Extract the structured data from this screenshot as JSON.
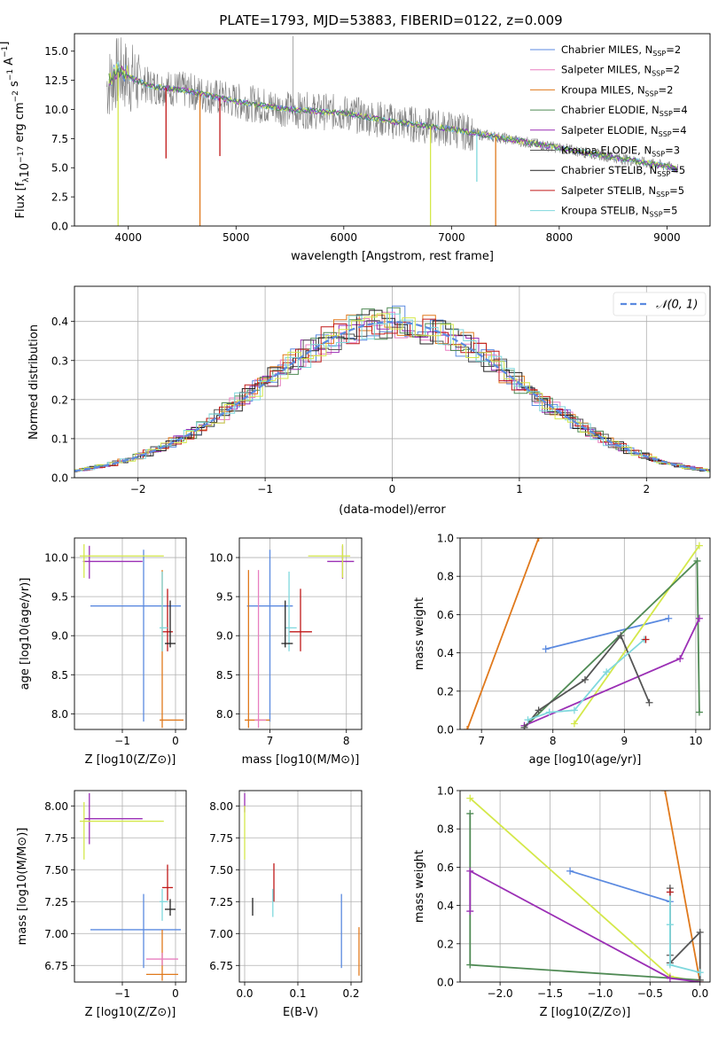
{
  "figure": {
    "title": "PLATE=1793, MJD=53883, FIBERID=0122, z=0.009"
  },
  "colors": {
    "chabrier_miles": "#5b8ae0",
    "salpeter_miles": "#e87fc0",
    "kroupa_miles": "#e0791c",
    "chabrier_elodie": "#4f8a54",
    "salpeter_elodie": "#9b2fb5",
    "kroupa_elodie": "#555555",
    "chabrier_stelib": "#222222",
    "salpeter_stelib": "#c01818",
    "kroupa_stelib": "#7fd8dd",
    "data_spectrum": "#808080",
    "yellow_green": "#d4e84a",
    "normal_curve": "#5b8ae0",
    "grid": "#b0b0b0"
  },
  "chart_data": [
    {
      "id": "spectrum",
      "type": "line",
      "xlabel": "wavelength [Angstrom, rest frame]",
      "ylabel": "Flux [f_λ 10^-17 erg cm^-2 s^-1 A^-1]",
      "xlim": [
        3500,
        9400
      ],
      "ylim": [
        0,
        16.5
      ],
      "xticks": [
        4000,
        5000,
        6000,
        7000,
        8000,
        9000
      ],
      "yticks": [
        0.0,
        2.5,
        5.0,
        7.5,
        10.0,
        12.5,
        15.0
      ],
      "ytick_labels": [
        "0.0",
        "2.5",
        "5.0",
        "7.5",
        "10.0",
        "12.5",
        "15.0"
      ],
      "grid": false,
      "legend_position": "top-right",
      "legend": [
        "Chabrier MILES, N_SSP=2",
        "Salpeter MILES, N_SSP=2",
        "Kroupa MILES, N_SSP=2",
        "Chabrier ELODIE, N_SSP=4",
        "Salpeter ELODIE, N_SSP=4",
        "Kroupa ELODIE, N_SSP=3",
        "Chabrier STELIB, N_SSP=5",
        "Salpeter STELIB, N_SSP=5",
        "Kroupa STELIB, N_SSP=5"
      ],
      "continuum_wavelength": [
        3800,
        3900,
        4000,
        4200,
        4500,
        5000,
        5500,
        6000,
        6500,
        7000,
        7500,
        8000,
        8500,
        9000,
        9100
      ],
      "continuum_flux": [
        12.0,
        13.2,
        12.8,
        12.0,
        11.7,
        10.7,
        10.0,
        9.7,
        8.9,
        8.3,
        7.5,
        6.7,
        5.9,
        5.1,
        4.9
      ]
    },
    {
      "id": "residual_hist",
      "type": "line",
      "xlabel": "(data-model)/error",
      "ylabel": "Normed distribution",
      "xlim": [
        -2.5,
        2.5
      ],
      "ylim": [
        0,
        0.49
      ],
      "xticks": [
        -2,
        -1,
        0,
        1,
        2
      ],
      "xtick_labels": [
        "−2",
        "−1",
        "0",
        "1",
        "2"
      ],
      "yticks": [
        0.0,
        0.1,
        0.2,
        0.3,
        0.4
      ],
      "ytick_labels": [
        "0.0",
        "0.1",
        "0.2",
        "0.3",
        "0.4"
      ],
      "grid": true,
      "legend_position": "top-right",
      "legend": [
        "𝒩(0, 1)"
      ],
      "normal": {
        "mean": 0,
        "sigma": 1
      }
    },
    {
      "id": "age_vs_Z",
      "type": "scatter",
      "xlabel": "Z [log10(Z/Z⊙)]",
      "ylabel": "age  [log10(age/yr)]",
      "xlim": [
        -1.9,
        0.2
      ],
      "ylim": [
        7.8,
        10.25
      ],
      "xticks": [
        -1,
        0
      ],
      "xtick_labels": [
        "−1",
        "0"
      ],
      "yticks": [
        8.0,
        8.5,
        9.0,
        9.5,
        10.0
      ],
      "ytick_labels": [
        "8.0",
        "8.5",
        "9.0",
        "9.5",
        "10.0"
      ],
      "grid": true,
      "errorbars": [
        {
          "series": "chabrier_miles",
          "x": -0.6,
          "xerr": [
            1.0,
            0.7
          ],
          "y": 9.38,
          "yerr": [
            1.48,
            0.72
          ]
        },
        {
          "series": "kroupa_miles",
          "x": -0.25,
          "xerr": [
            0.05,
            0.4
          ],
          "y": 7.92,
          "yerr": [
            0.1,
            1.92
          ]
        },
        {
          "series": "salpeter_elodie",
          "x": -1.62,
          "xerr": [
            0.12,
            1.0
          ],
          "y": 9.95,
          "yerr": [
            0.22,
            0.2
          ]
        },
        {
          "series": "yellow_green",
          "x": -1.72,
          "xerr": [
            0.08,
            1.5
          ],
          "y": 10.02,
          "yerr": [
            0.28,
            0.15
          ]
        },
        {
          "series": "salpeter_stelib",
          "x": -0.15,
          "xerr": [
            0.1,
            0.1
          ],
          "y": 9.05,
          "yerr": [
            0.25,
            0.55
          ]
        },
        {
          "series": "kroupa_stelib",
          "x": -0.25,
          "xerr": [
            0.05,
            0.1
          ],
          "y": 9.1,
          "yerr": [
            0.3,
            0.72
          ]
        },
        {
          "series": "chabrier_stelib",
          "x": -0.1,
          "xerr": [
            0.1,
            0.1
          ],
          "y": 8.9,
          "yerr": [
            0.05,
            0.55
          ]
        }
      ]
    },
    {
      "id": "age_vs_mass",
      "type": "scatter",
      "xlabel": "mass [log10(M/M⊙)]",
      "ylabel": "",
      "xlim": [
        6.6,
        8.2
      ],
      "ylim": [
        7.8,
        10.25
      ],
      "xticks": [
        7,
        8
      ],
      "xtick_labels": [
        "7",
        "8"
      ],
      "yticks": [
        8.0,
        8.5,
        9.0,
        9.5,
        10.0
      ],
      "ytick_labels": [
        "8.0",
        "8.5",
        "9.0",
        "9.5",
        "10.0"
      ],
      "grid": true,
      "errorbars": [
        {
          "series": "chabrier_miles",
          "x": 7.0,
          "xerr": [
            0.3,
            0.3
          ],
          "y": 9.38,
          "yerr": [
            1.48,
            0.72
          ]
        },
        {
          "series": "kroupa_miles",
          "x": 6.72,
          "xerr": [
            0.05,
            0.28
          ],
          "y": 7.92,
          "yerr": [
            0.1,
            1.92
          ]
        },
        {
          "series": "salpeter_miles",
          "x": 6.85,
          "xerr": [
            0.05,
            0.1
          ],
          "y": 7.92,
          "yerr": [
            0.1,
            1.92
          ]
        },
        {
          "series": "salpeter_elodie",
          "x": 7.95,
          "xerr": [
            0.2,
            0.15
          ],
          "y": 9.95,
          "yerr": [
            0.22,
            0.2
          ]
        },
        {
          "series": "yellow_green",
          "x": 7.95,
          "xerr": [
            0.45,
            0.1
          ],
          "y": 10.02,
          "yerr": [
            0.28,
            0.15
          ]
        },
        {
          "series": "salpeter_stelib",
          "x": 7.4,
          "xerr": [
            0.15,
            0.15
          ],
          "y": 9.05,
          "yerr": [
            0.25,
            0.55
          ]
        },
        {
          "series": "kroupa_stelib",
          "x": 7.25,
          "xerr": [
            0.05,
            0.1
          ],
          "y": 9.1,
          "yerr": [
            0.3,
            0.72
          ]
        },
        {
          "series": "chabrier_stelib",
          "x": 7.2,
          "xerr": [
            0.05,
            0.1
          ],
          "y": 8.9,
          "yerr": [
            0.05,
            0.55
          ]
        }
      ]
    },
    {
      "id": "weight_vs_age",
      "type": "line",
      "xlabel": "age  [log10(age/yr)]",
      "ylabel": "mass weight",
      "xlim": [
        6.7,
        10.2
      ],
      "ylim": [
        0,
        1.0
      ],
      "xticks": [
        7,
        8,
        9,
        10
      ],
      "xtick_labels": [
        "7",
        "8",
        "9",
        "10"
      ],
      "yticks": [
        0.0,
        0.2,
        0.4,
        0.6,
        0.8,
        1.0
      ],
      "ytick_labels": [
        "0.0",
        "0.2",
        "0.4",
        "0.6",
        "0.8",
        "1.0"
      ],
      "grid": true,
      "series": [
        {
          "color": "kroupa_miles",
          "x": [
            6.8,
            7.8
          ],
          "y": [
            0.0,
            1.0
          ]
        },
        {
          "color": "chabrier_miles",
          "x": [
            7.9,
            9.62
          ],
          "y": [
            0.42,
            0.58
          ]
        },
        {
          "color": "yellow_green",
          "x": [
            8.3,
            10.05
          ],
          "y": [
            0.03,
            0.96
          ]
        },
        {
          "color": "chabrier_elodie",
          "x": [
            7.6,
            10.02,
            10.05
          ],
          "y": [
            0.01,
            0.88,
            0.09
          ]
        },
        {
          "color": "salpeter_elodie",
          "x": [
            7.6,
            9.78,
            10.05
          ],
          "y": [
            0.02,
            0.37,
            0.58
          ]
        },
        {
          "color": "kroupa_elodie",
          "x": [
            7.6,
            7.8,
            8.45,
            8.95,
            9.35
          ],
          "y": [
            0.01,
            0.1,
            0.26,
            0.49,
            0.14
          ]
        },
        {
          "color": "kroupa_stelib",
          "x": [
            7.65,
            7.95,
            8.3,
            8.75,
            9.28
          ],
          "y": [
            0.05,
            0.09,
            0.1,
            0.3,
            0.47
          ]
        },
        {
          "color": "salpeter_stelib",
          "x": [
            9.3
          ],
          "y": [
            0.47
          ]
        }
      ]
    },
    {
      "id": "mass_vs_Z",
      "type": "scatter",
      "xlabel": "Z [log10(Z/Z⊙)]",
      "ylabel": "mass [log10(M/M⊙)]",
      "xlim": [
        -1.9,
        0.2
      ],
      "ylim": [
        6.62,
        8.12
      ],
      "xticks": [
        -1,
        0
      ],
      "xtick_labels": [
        "−1",
        "0"
      ],
      "yticks": [
        6.75,
        7.0,
        7.25,
        7.5,
        7.75,
        8.0
      ],
      "ytick_labels": [
        "6.75",
        "7.00",
        "7.25",
        "7.50",
        "7.75",
        "8.00"
      ],
      "grid": true,
      "errorbars": [
        {
          "series": "chabrier_miles",
          "x": -0.6,
          "xerr": [
            1.0,
            0.7
          ],
          "y": 7.03,
          "yerr": [
            0.3,
            0.28
          ]
        },
        {
          "series": "kroupa_miles",
          "x": -0.25,
          "xerr": [
            0.3,
            0.3
          ],
          "y": 6.68,
          "yerr": [
            0.05,
            0.35
          ]
        },
        {
          "series": "salpeter_miles",
          "x": -0.25,
          "xerr": [
            0.3,
            0.3
          ],
          "y": 6.8,
          "yerr": [
            0.05,
            0.05
          ]
        },
        {
          "series": "salpeter_elodie",
          "x": -1.62,
          "xerr": [
            0.1,
            1.0
          ],
          "y": 7.9,
          "yerr": [
            0.2,
            0.2
          ]
        },
        {
          "series": "yellow_green",
          "x": -1.72,
          "xerr": [
            0.08,
            1.5
          ],
          "y": 7.88,
          "yerr": [
            0.3,
            0.15
          ]
        },
        {
          "series": "salpeter_stelib",
          "x": -0.15,
          "xerr": [
            0.1,
            0.1
          ],
          "y": 7.36,
          "yerr": [
            0.1,
            0.18
          ]
        },
        {
          "series": "kroupa_stelib",
          "x": -0.25,
          "xerr": [
            0.05,
            0.1
          ],
          "y": 7.25,
          "yerr": [
            0.15,
            0.1
          ]
        },
        {
          "series": "chabrier_stelib",
          "x": -0.1,
          "xerr": [
            0.1,
            0.1
          ],
          "y": 7.19,
          "yerr": [
            0.05,
            0.08
          ]
        }
      ]
    },
    {
      "id": "mass_vs_ebv",
      "type": "scatter",
      "xlabel": "E(B-V)",
      "ylabel": "",
      "xlim": [
        -0.01,
        0.22
      ],
      "ylim": [
        6.62,
        8.12
      ],
      "xticks": [
        0.0,
        0.1,
        0.2
      ],
      "xtick_labels": [
        "0.0",
        "0.1",
        "0.2"
      ],
      "yticks": [
        6.75,
        7.0,
        7.25,
        7.5,
        7.75,
        8.0
      ],
      "ytick_labels": [
        "6.75",
        "7.00",
        "7.25",
        "7.50",
        "7.75",
        "8.00"
      ],
      "grid": true,
      "errorbars": [
        {
          "series": "chabrier_miles",
          "x": 0.182,
          "xerr": [
            0,
            0
          ],
          "y": 7.03,
          "yerr": [
            0.3,
            0.28
          ]
        },
        {
          "series": "kroupa_miles",
          "x": 0.215,
          "xerr": [
            0,
            0
          ],
          "y": 6.85,
          "yerr": [
            0.18,
            0.2
          ]
        },
        {
          "series": "salpeter_elodie",
          "x": 0.0,
          "xerr": [
            0,
            0
          ],
          "y": 8.0,
          "yerr": [
            0.05,
            0.1
          ]
        },
        {
          "series": "yellow_green",
          "x": 0.0,
          "xerr": [
            0,
            0
          ],
          "y": 7.75,
          "yerr": [
            0.17,
            0.25
          ]
        },
        {
          "series": "salpeter_stelib",
          "x": 0.055,
          "xerr": [
            0,
            0
          ],
          "y": 7.4,
          "yerr": [
            0.15,
            0.15
          ]
        },
        {
          "series": "kroupa_stelib",
          "x": 0.053,
          "xerr": [
            0,
            0
          ],
          "y": 7.25,
          "yerr": [
            0.12,
            0.1
          ]
        },
        {
          "series": "chabrier_stelib",
          "x": 0.015,
          "xerr": [
            0,
            0
          ],
          "y": 7.21,
          "yerr": [
            0.07,
            0.07
          ]
        }
      ]
    },
    {
      "id": "weight_vs_Z",
      "type": "line",
      "xlabel": "Z [log10(Z/Z⊙)]",
      "ylabel": "mass weight",
      "xlim": [
        -2.4,
        0.1
      ],
      "ylim": [
        0,
        1.0
      ],
      "xticks": [
        -2.0,
        -1.5,
        -1.0,
        -0.5,
        0.0
      ],
      "xtick_labels": [
        "−2.0",
        "−1.5",
        "−1.0",
        "−0.5",
        "0.0"
      ],
      "yticks": [
        0.0,
        0.2,
        0.4,
        0.6,
        0.8,
        1.0
      ],
      "ytick_labels": [
        "0.0",
        "0.2",
        "0.4",
        "0.6",
        "0.8",
        "1.0"
      ],
      "grid": true,
      "series": [
        {
          "color": "kroupa_miles",
          "x": [
            -0.35,
            0.0
          ],
          "y": [
            1.0,
            0.0
          ]
        },
        {
          "color": "chabrier_miles",
          "x": [
            -1.3,
            -0.3
          ],
          "y": [
            0.58,
            0.42
          ]
        },
        {
          "color": "yellow_green",
          "x": [
            -2.3,
            -0.3,
            0.0
          ],
          "y": [
            0.96,
            0.03,
            0.0
          ]
        },
        {
          "color": "chabrier_elodie",
          "x": [
            -2.3,
            -2.3,
            0.0
          ],
          "y": [
            0.88,
            0.09,
            0.01
          ]
        },
        {
          "color": "salpeter_elodie",
          "x": [
            -2.3,
            -2.3,
            -0.3,
            0.0
          ],
          "y": [
            0.37,
            0.58,
            0.02,
            0.0
          ]
        },
        {
          "color": "kroupa_elodie",
          "x": [
            -0.3,
            -0.3,
            -0.3,
            0.0,
            0.0
          ],
          "y": [
            0.49,
            0.14,
            0.1,
            0.26,
            0.01
          ]
        },
        {
          "color": "kroupa_stelib",
          "x": [
            -0.3,
            -0.3,
            -0.3,
            0.0
          ],
          "y": [
            0.47,
            0.3,
            0.09,
            0.05
          ]
        },
        {
          "color": "salpeter_stelib",
          "x": [
            -0.3
          ],
          "y": [
            0.47
          ]
        }
      ]
    }
  ]
}
